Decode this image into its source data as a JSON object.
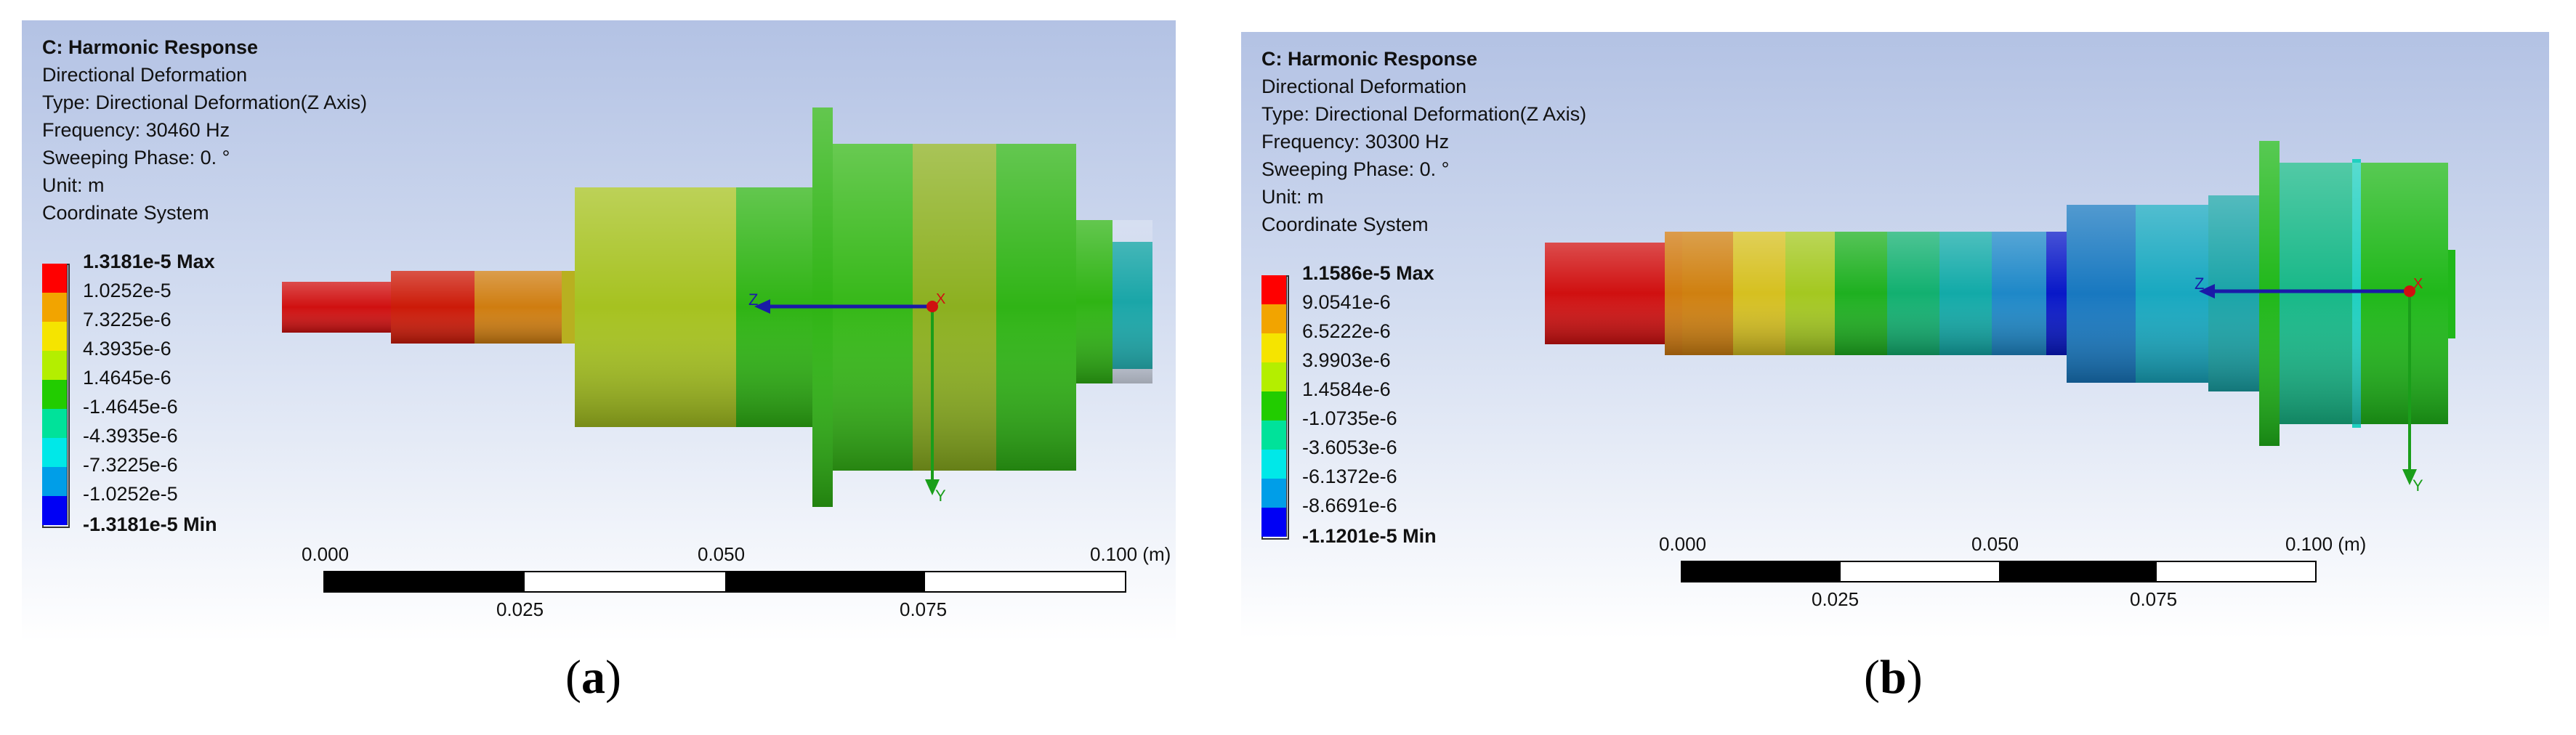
{
  "panels": [
    {
      "caption_letter": "a",
      "info": {
        "title": "C: Harmonic Response",
        "result": "Directional Deformation",
        "type": "Type: Directional Deformation(Z Axis)",
        "frequency": "Frequency: 30460 Hz",
        "sweeping_phase": "Sweeping Phase: 0. °",
        "unit": "Unit: m",
        "coordinate_system": "Coordinate System"
      },
      "legend": {
        "max_label": "1.3181e-5 Max",
        "min_label": "-1.3181e-5 Min",
        "levels": [
          "1.0252e-5",
          "7.3225e-6",
          "4.3935e-6",
          "1.4645e-6",
          "-1.4645e-6",
          "-4.3935e-6",
          "-7.3225e-6",
          "-1.0252e-5"
        ],
        "colors": [
          "#ff0000",
          "#f2a400",
          "#f5e400",
          "#b4ee00",
          "#22cc00",
          "#00e29a",
          "#00e8e8",
          "#009ee8",
          "#0000f5"
        ]
      },
      "scale": {
        "top_ticks": [
          "0.000",
          "0.050",
          "0.100 (m)"
        ],
        "bottom_ticks": [
          "0.025",
          "0.075"
        ]
      },
      "axis_labels": {
        "z": "Z",
        "y": "Y",
        "x": "X"
      }
    },
    {
      "caption_letter": "b",
      "info": {
        "title": "C: Harmonic Response",
        "result": "Directional Deformation",
        "type": "Type: Directional Deformation(Z Axis)",
        "frequency": "Frequency: 30300 Hz",
        "sweeping_phase": "Sweeping Phase: 0. °",
        "unit": "Unit: m",
        "coordinate_system": "Coordinate System"
      },
      "legend": {
        "max_label": "1.1586e-5 Max",
        "min_label": "-1.1201e-5 Min",
        "levels": [
          "9.0541e-6",
          "6.5222e-6",
          "3.9903e-6",
          "1.4584e-6",
          "-1.0735e-6",
          "-3.6053e-6",
          "-6.1372e-6",
          "-8.6691e-6"
        ],
        "colors": [
          "#ff0000",
          "#f2a400",
          "#f5e400",
          "#b4ee00",
          "#22cc00",
          "#00e29a",
          "#00e8e8",
          "#009ee8",
          "#0000f5"
        ]
      },
      "scale": {
        "top_ticks": [
          "0.000",
          "0.050",
          "0.100 (m)"
        ],
        "bottom_ticks": [
          "0.025",
          "0.075"
        ]
      },
      "axis_labels": {
        "z": "Z",
        "y": "Y",
        "x": "X"
      }
    }
  ]
}
